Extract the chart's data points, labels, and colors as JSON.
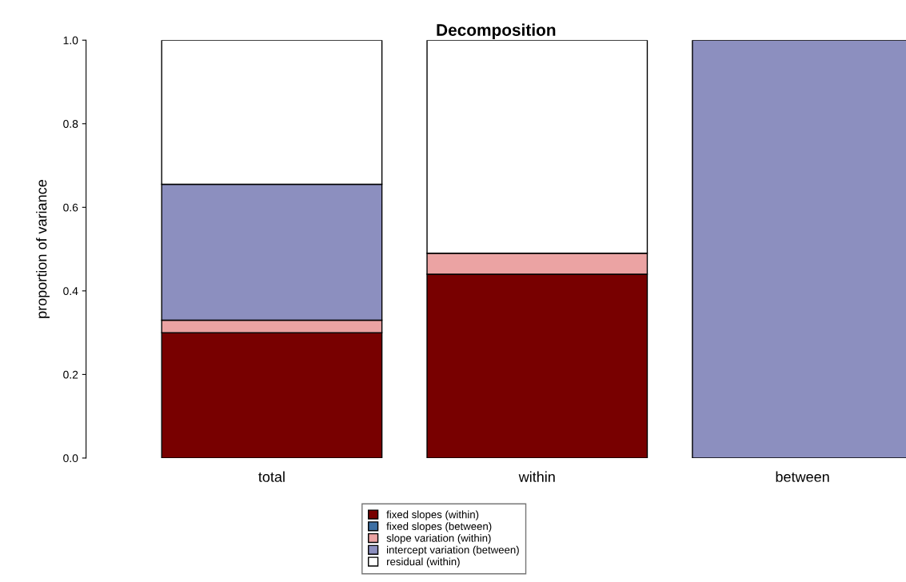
{
  "chart_data": {
    "type": "bar",
    "title": "Decomposition",
    "ylabel": "proportion of variance",
    "categories": [
      "total",
      "within",
      "between"
    ],
    "stacked": true,
    "series": [
      {
        "name": "fixed slopes (within)",
        "color": "#780000",
        "values": [
          0.3,
          0.44,
          0
        ]
      },
      {
        "name": "fixed slopes (between)",
        "color": "#3d6fa3",
        "values": [
          0,
          0,
          0
        ]
      },
      {
        "name": "slope variation (within)",
        "color": "#eba3a3",
        "values": [
          0.03,
          0.05,
          0
        ]
      },
      {
        "name": "intercept variation (between)",
        "color": "#8c8fbf",
        "values": [
          0.325,
          0,
          1.0
        ]
      },
      {
        "name": "residual (within)",
        "color": "#ffffff",
        "values": [
          0.345,
          0.51,
          0
        ]
      }
    ],
    "ylim": [
      0,
      1
    ],
    "yticks": [
      {
        "value": 0,
        "label": "0.0"
      },
      {
        "value": 0.2,
        "label": "0.2"
      },
      {
        "value": 0.4,
        "label": "0.4"
      },
      {
        "value": 0.6,
        "label": "0.6"
      },
      {
        "value": 0.8,
        "label": "0.8"
      },
      {
        "value": 1,
        "label": "1.0"
      }
    ],
    "legend": "bottom",
    "grid": false
  }
}
